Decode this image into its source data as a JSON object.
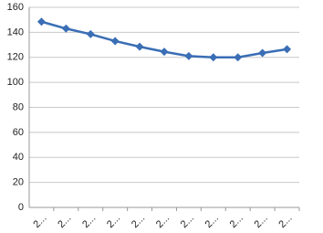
{
  "chart_data": {
    "type": "line",
    "categories": [
      "2...",
      "2...",
      "2...",
      "2...",
      "2...",
      "2...",
      "2...",
      "2...",
      "2...",
      "2...",
      "2..."
    ],
    "series": [
      {
        "color": "#3a6eb5",
        "values": [
          148.5,
          143,
          138.5,
          133,
          128.5,
          124.5,
          121,
          120,
          120,
          123.5,
          126.5
        ]
      }
    ],
    "ylim": [
      0,
      160
    ],
    "yticks": [
      0,
      20,
      40,
      60,
      80,
      100,
      120,
      140,
      160
    ],
    "grid": true
  }
}
